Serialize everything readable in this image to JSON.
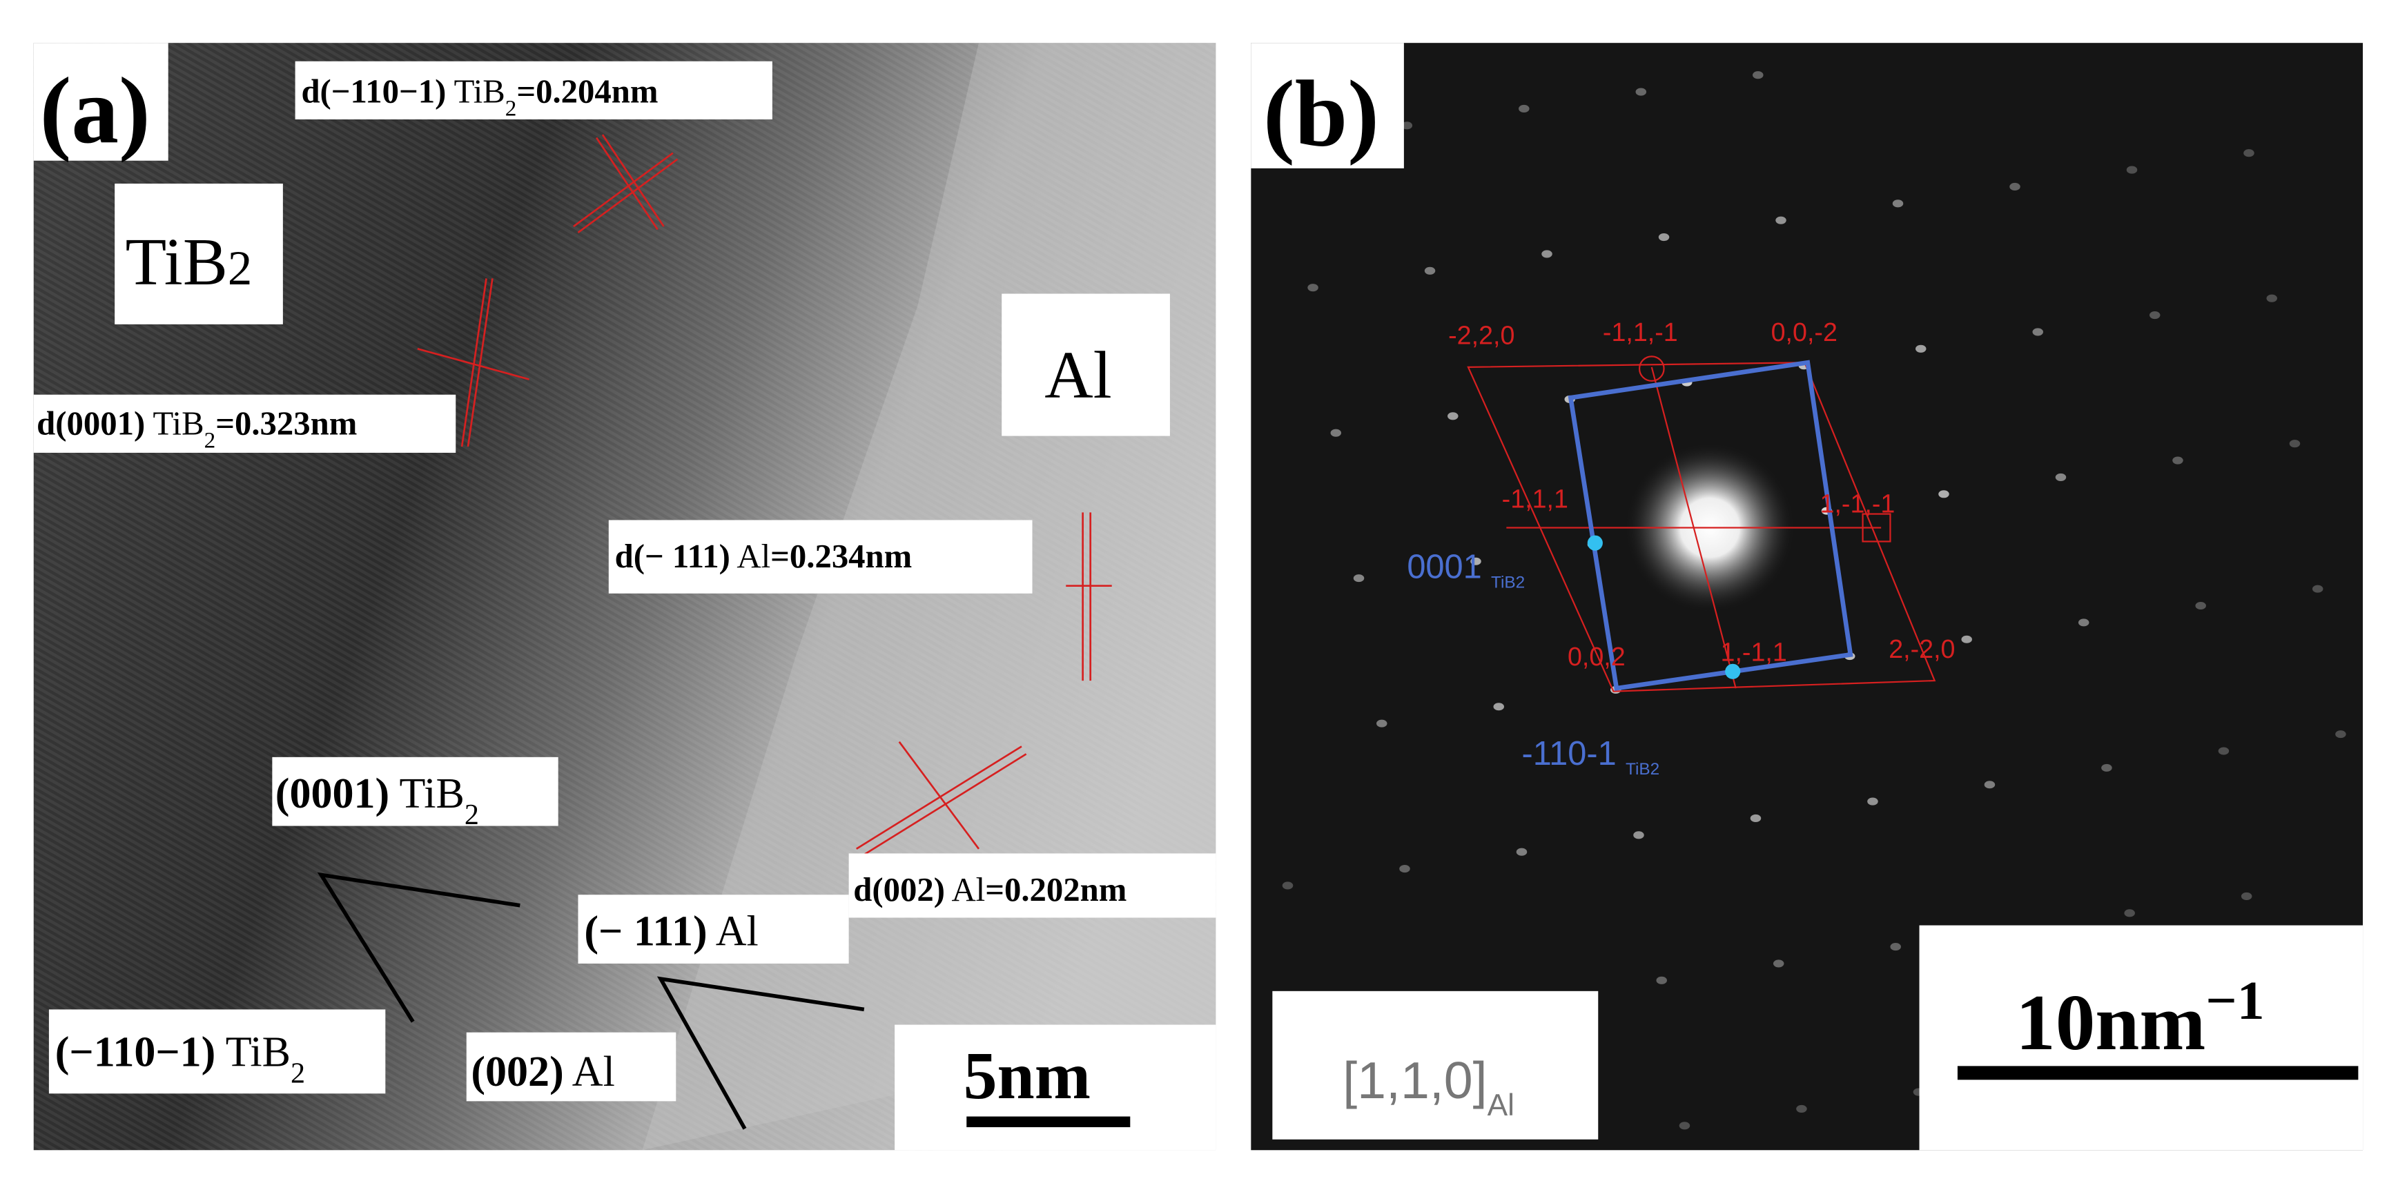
{
  "panel_a": {
    "label": "(a)",
    "phases": [
      {
        "text": "TiB",
        "sub": "2"
      },
      {
        "text": "Al"
      }
    ],
    "spacings": [
      {
        "plane": "d(−110−1)",
        "phase": " TiB",
        "sub": "2",
        "value": "=0.204nm"
      },
      {
        "plane": "d(0001)",
        "phase": " TiB",
        "sub": "2",
        "value": "=0.323nm"
      },
      {
        "plane": "d(− 111)",
        "phase": " Al",
        "value": "=0.234nm"
      },
      {
        "plane": "d(002)",
        "phase": " Al",
        "value": "=0.202nm"
      }
    ],
    "planes": [
      {
        "plane": "(0001)",
        "phase": " TiB",
        "sub": "2"
      },
      {
        "plane": "(−110−1)",
        "phase": " TiB",
        "sub": "2"
      },
      {
        "plane": "(− 111)",
        "phase": " Al"
      },
      {
        "plane": "(002)",
        "phase": " Al"
      }
    ],
    "scale_bar": "5nm"
  },
  "panel_b": {
    "label": "(b)",
    "spot_indices": [
      "-2,2,0",
      "-1,1,-1",
      "0,0,-2",
      "-1,1,1",
      "1,-1,-1",
      "0,0,2",
      "1,-1,1",
      "2,-2,0"
    ],
    "cells": [
      {
        "text": "0001",
        "sub": "TiB2"
      },
      {
        "text": "-110-1",
        "sub": "TiB2"
      }
    ],
    "zone_axis": {
      "text": "[1,1,0]",
      "sub": "Al"
    },
    "scale_bar": {
      "text": "10nm",
      "sup": "−1"
    }
  }
}
